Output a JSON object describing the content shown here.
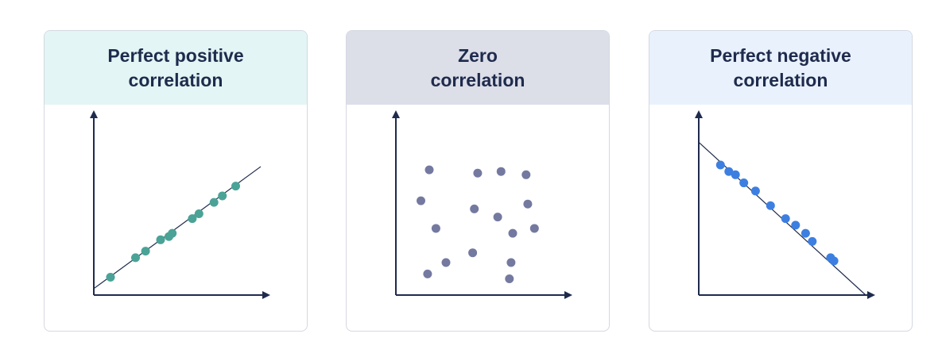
{
  "colors": {
    "text": "#1f2b4d",
    "axis": "#1f2b4d",
    "border": "#d4d8e2"
  },
  "chart_data": [
    {
      "type": "scatter",
      "title_line1": "Perfect positive",
      "title_line2": "correlation",
      "header_bg": "#e3f5f4",
      "point_color": "#4aa396",
      "xlim": [
        0,
        100
      ],
      "ylim": [
        0,
        100
      ],
      "trend_line": [
        [
          0,
          4
        ],
        [
          100,
          79
        ]
      ],
      "points": [
        {
          "x": 10,
          "y": 11
        },
        {
          "x": 25,
          "y": 23
        },
        {
          "x": 31,
          "y": 27
        },
        {
          "x": 40,
          "y": 34
        },
        {
          "x": 45,
          "y": 36
        },
        {
          "x": 47,
          "y": 38
        },
        {
          "x": 59,
          "y": 47
        },
        {
          "x": 63,
          "y": 50
        },
        {
          "x": 72,
          "y": 57
        },
        {
          "x": 77,
          "y": 61
        },
        {
          "x": 85,
          "y": 67
        }
      ]
    },
    {
      "type": "scatter",
      "title_line1": "Zero",
      "title_line2": "correlation",
      "header_bg": "#dcdee8",
      "point_color": "#7479a0",
      "xlim": [
        0,
        100
      ],
      "ylim": [
        0,
        100
      ],
      "points": [
        {
          "x": 20,
          "y": 77
        },
        {
          "x": 49,
          "y": 75
        },
        {
          "x": 63,
          "y": 76
        },
        {
          "x": 78,
          "y": 74
        },
        {
          "x": 15,
          "y": 58
        },
        {
          "x": 47,
          "y": 53
        },
        {
          "x": 61,
          "y": 48
        },
        {
          "x": 79,
          "y": 56
        },
        {
          "x": 24,
          "y": 41
        },
        {
          "x": 70,
          "y": 38
        },
        {
          "x": 83,
          "y": 41
        },
        {
          "x": 30,
          "y": 20
        },
        {
          "x": 46,
          "y": 26
        },
        {
          "x": 69,
          "y": 20
        },
        {
          "x": 19,
          "y": 13
        },
        {
          "x": 68,
          "y": 10
        }
      ]
    },
    {
      "type": "scatter",
      "title_line1": "Perfect negative",
      "title_line2": "correlation",
      "header_bg": "#e9f2fc",
      "point_color": "#3d7fe0",
      "xlim": [
        0,
        100
      ],
      "ylim": [
        0,
        100
      ],
      "trend_line": [
        [
          0,
          94
        ],
        [
          100,
          0
        ]
      ],
      "points": [
        {
          "x": 13,
          "y": 80
        },
        {
          "x": 18,
          "y": 76
        },
        {
          "x": 22,
          "y": 74
        },
        {
          "x": 27,
          "y": 69
        },
        {
          "x": 34,
          "y": 64
        },
        {
          "x": 43,
          "y": 55
        },
        {
          "x": 52,
          "y": 47
        },
        {
          "x": 58,
          "y": 43
        },
        {
          "x": 64,
          "y": 38
        },
        {
          "x": 68,
          "y": 33
        },
        {
          "x": 79,
          "y": 23
        },
        {
          "x": 81,
          "y": 21
        }
      ]
    }
  ]
}
